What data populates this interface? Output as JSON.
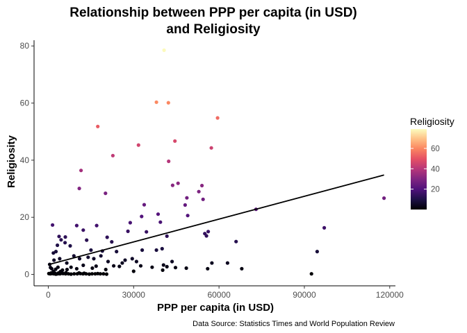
{
  "chart_data": {
    "type": "scatter",
    "title_lines": [
      "Relationship between PPP per capita (in USD)",
      "and Religiosity"
    ],
    "xlabel": "PPP per capita (in USD)",
    "ylabel": "Religiosity",
    "caption": "Data Source: Statistics Times and World Population Review",
    "xlim": [
      -5000,
      122000
    ],
    "ylim": [
      -4,
      82
    ],
    "x_ticks": [
      0,
      30000,
      60000,
      90000,
      120000
    ],
    "x_tick_labels": [
      "0",
      "30000",
      "60000",
      "90000",
      "120000"
    ],
    "y_ticks": [
      0,
      20,
      40,
      60,
      80
    ],
    "y_tick_labels": [
      "0",
      "20",
      "40",
      "60",
      "80"
    ],
    "grid": false,
    "color_scale": "magma",
    "legend": {
      "title": "Religiosity",
      "position": "right",
      "ticks": [
        20,
        40,
        60
      ],
      "range": [
        0,
        79
      ]
    },
    "trend_line": {
      "x": [
        0,
        118000
      ],
      "y": [
        3.4,
        34.8
      ]
    },
    "points": [
      [
        40700,
        78.5
      ],
      [
        38000,
        60.3
      ],
      [
        42200,
        60.1
      ],
      [
        59500,
        54.8
      ],
      [
        17400,
        51.8
      ],
      [
        44500,
        46.7
      ],
      [
        31700,
        45.3
      ],
      [
        57300,
        44.3
      ],
      [
        22700,
        41.6
      ],
      [
        42300,
        39.6
      ],
      [
        11500,
        36.4
      ],
      [
        45600,
        31.9
      ],
      [
        43700,
        31.2
      ],
      [
        54000,
        31.1
      ],
      [
        10900,
        30.1
      ],
      [
        52900,
        29.0
      ],
      [
        20100,
        28.4
      ],
      [
        48700,
        26.8
      ],
      [
        54400,
        26.3
      ],
      [
        118000,
        26.7
      ],
      [
        48100,
        24.3
      ],
      [
        33700,
        24.4
      ],
      [
        73000,
        22.8
      ],
      [
        38600,
        21.1
      ],
      [
        32800,
        20.3
      ],
      [
        49000,
        20.6
      ],
      [
        39400,
        18.3
      ],
      [
        28800,
        18.1
      ],
      [
        1500,
        17.3
      ],
      [
        17000,
        17.1
      ],
      [
        10000,
        17.1
      ],
      [
        56200,
        15.0
      ],
      [
        97000,
        16.3
      ],
      [
        12300,
        15.5
      ],
      [
        28000,
        15.1
      ],
      [
        34500,
        14.9
      ],
      [
        3800,
        13.3
      ],
      [
        6000,
        13.1
      ],
      [
        20700,
        13.0
      ],
      [
        4500,
        12.1
      ],
      [
        41700,
        13.4
      ],
      [
        55000,
        14.3
      ],
      [
        55600,
        13.5
      ],
      [
        13500,
        12.0
      ],
      [
        5900,
        11.1
      ],
      [
        22300,
        11.4
      ],
      [
        66000,
        11.5
      ],
      [
        1800,
        7.5
      ],
      [
        2700,
        8.0
      ],
      [
        3200,
        10.2
      ],
      [
        7700,
        10.0
      ],
      [
        15000,
        8.5
      ],
      [
        19000,
        8.2
      ],
      [
        24000,
        8.0
      ],
      [
        38000,
        8.5
      ],
      [
        40000,
        9.0
      ],
      [
        33000,
        8.5
      ],
      [
        2000,
        5.0
      ],
      [
        4000,
        5.5
      ],
      [
        9000,
        6.5
      ],
      [
        11000,
        5.5
      ],
      [
        14000,
        6.0
      ],
      [
        16000,
        5.5
      ],
      [
        18500,
        6.5
      ],
      [
        27000,
        5.0
      ],
      [
        29500,
        5.5
      ],
      [
        6500,
        4.0
      ],
      [
        26000,
        4.0
      ],
      [
        21000,
        4.5
      ],
      [
        31000,
        4.5
      ],
      [
        94500,
        8.0
      ],
      [
        57500,
        4.0
      ],
      [
        63000,
        4.0
      ],
      [
        43500,
        4.5
      ],
      [
        36500,
        2.5
      ],
      [
        40500,
        3.3
      ],
      [
        41700,
        2.7
      ],
      [
        32500,
        3.0
      ],
      [
        44700,
        2.4
      ],
      [
        48500,
        2.2
      ],
      [
        40200,
        1.5
      ],
      [
        56000,
        2.0
      ],
      [
        68000,
        2.0
      ],
      [
        25000,
        2.8
      ],
      [
        23000,
        3.0
      ],
      [
        15500,
        2.2
      ],
      [
        12300,
        3.2
      ],
      [
        16800,
        2.9
      ],
      [
        20200,
        1.7
      ],
      [
        8000,
        2.5
      ],
      [
        10000,
        2.0
      ],
      [
        500,
        3.5
      ],
      [
        800,
        2.4
      ],
      [
        1200,
        2.0
      ],
      [
        2600,
        1.8
      ],
      [
        3400,
        2.5
      ],
      [
        5000,
        1.5
      ],
      [
        6600,
        1.7
      ],
      [
        1800,
        1.0
      ],
      [
        4300,
        1.0
      ],
      [
        30000,
        1.1
      ],
      [
        92500,
        0.2
      ],
      [
        200,
        0.3
      ],
      [
        700,
        0.2
      ],
      [
        1300,
        0.3
      ],
      [
        2000,
        0.2
      ],
      [
        2700,
        0.1
      ],
      [
        3300,
        0.2
      ],
      [
        4100,
        0.2
      ],
      [
        5200,
        0.3
      ],
      [
        6100,
        0.2
      ],
      [
        7100,
        0.2
      ],
      [
        8000,
        0.1
      ],
      [
        9100,
        0.2
      ],
      [
        10200,
        0.2
      ],
      [
        11300,
        0.3
      ],
      [
        12200,
        0.2
      ],
      [
        13300,
        0.2
      ],
      [
        14400,
        0.1
      ],
      [
        15400,
        0.2
      ],
      [
        16500,
        0.2
      ],
      [
        17400,
        0.3
      ],
      [
        18300,
        0.2
      ],
      [
        19400,
        0.2
      ],
      [
        20500,
        0.1
      ],
      [
        1000,
        0.5
      ],
      [
        2400,
        0.4
      ],
      [
        3600,
        0.5
      ],
      [
        4700,
        0.4
      ],
      [
        6200,
        0.6
      ],
      [
        10800,
        0.5
      ],
      [
        12600,
        0.4
      ]
    ]
  }
}
